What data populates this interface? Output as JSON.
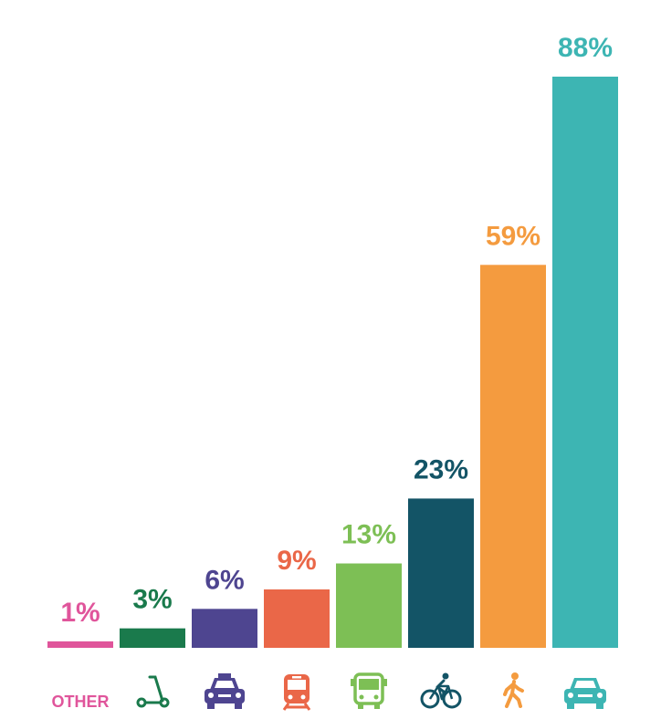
{
  "chart_data": {
    "type": "bar",
    "title": "",
    "xlabel": "",
    "ylabel": "",
    "ylim": [
      0,
      88
    ],
    "categories": [
      "OTHER",
      "scooter",
      "taxi",
      "train",
      "bus",
      "bicycle",
      "walk",
      "car"
    ],
    "values": [
      1,
      3,
      6,
      9,
      13,
      23,
      59,
      88
    ],
    "value_labels": [
      "1%",
      "3%",
      "6%",
      "9%",
      "13%",
      "23%",
      "59%",
      "88%"
    ],
    "colors": [
      "#e0559b",
      "#1a7a4c",
      "#4e4590",
      "#ea6748",
      "#7dbf55",
      "#135466",
      "#f49b3f",
      "#3db5b3"
    ],
    "category_display": [
      "text",
      "scooter-icon",
      "taxi-icon",
      "train-icon",
      "bus-icon",
      "bicycle-icon",
      "pedestrian-icon",
      "car-icon"
    ],
    "grid": false,
    "legend": "none"
  }
}
